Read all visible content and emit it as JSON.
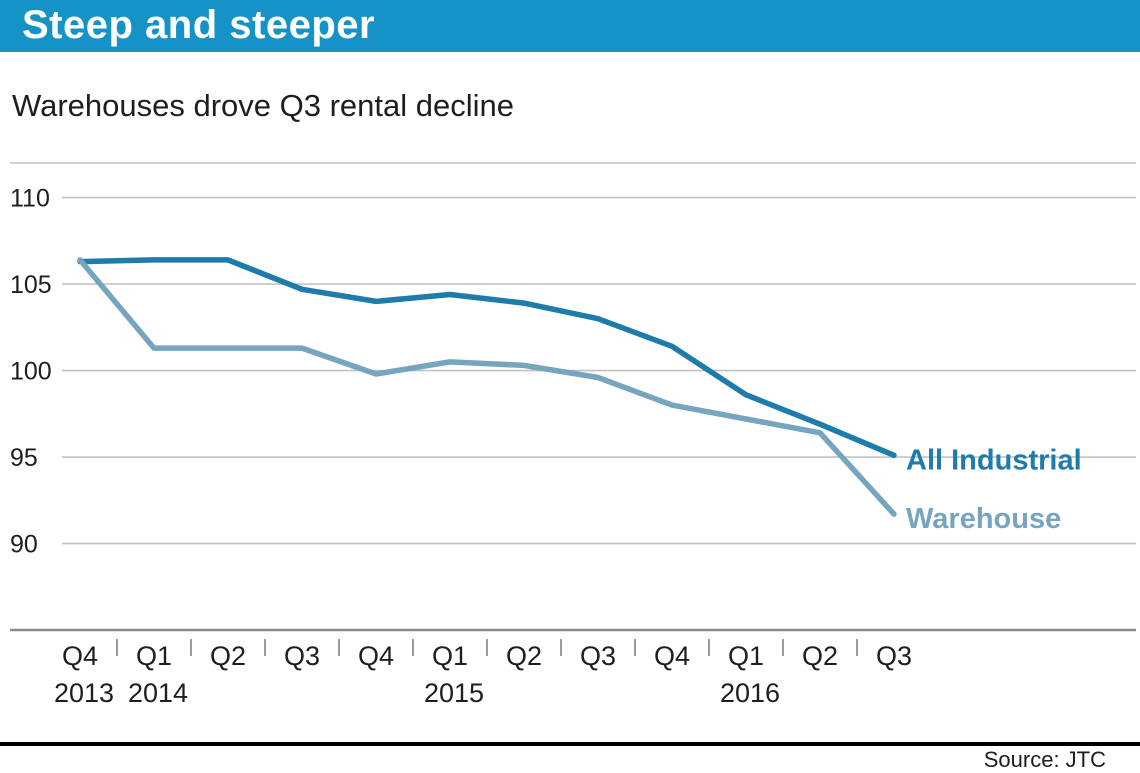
{
  "header": {
    "title": "Steep and steeper"
  },
  "subtitle": "Warehouses drove Q3 rental decline",
  "source": "Source: JTC",
  "colors": {
    "banner_bg": "#1693c6",
    "banner_text": "#ffffff",
    "grid": "#c2c2c2",
    "axis": "#8a8a8a",
    "tick": "#9a9a9a",
    "text": "#1e1e1e",
    "rule": "#000000"
  },
  "chart_data": {
    "type": "line",
    "title": "Steep and steeper",
    "subtitle": "Warehouses drove Q3 rental decline",
    "x_tick_labels": [
      "Q4",
      "Q1",
      "Q2",
      "Q3",
      "Q4",
      "Q1",
      "Q2",
      "Q3",
      "Q4",
      "Q1",
      "Q2",
      "Q3"
    ],
    "year_labels": [
      {
        "index": 0,
        "label": "2013"
      },
      {
        "index": 1,
        "label": "2014"
      },
      {
        "index": 5,
        "label": "2015"
      },
      {
        "index": 9,
        "label": "2016"
      }
    ],
    "yticks": [
      110,
      105,
      100,
      95,
      90
    ],
    "ylim": [
      85,
      112
    ],
    "grid": true,
    "legend_position": "line-end-labels",
    "series": [
      {
        "name": "All Industrial",
        "color": "#1d7cab",
        "values": [
          106.3,
          106.4,
          106.4,
          104.7,
          104.0,
          104.4,
          103.9,
          103.0,
          101.4,
          98.6,
          96.9,
          95.1
        ]
      },
      {
        "name": "Warehouse",
        "color": "#76a5c0",
        "values": [
          106.4,
          101.3,
          101.3,
          101.3,
          99.8,
          100.5,
          100.3,
          99.6,
          98.0,
          97.2,
          96.4,
          91.7
        ]
      }
    ]
  }
}
